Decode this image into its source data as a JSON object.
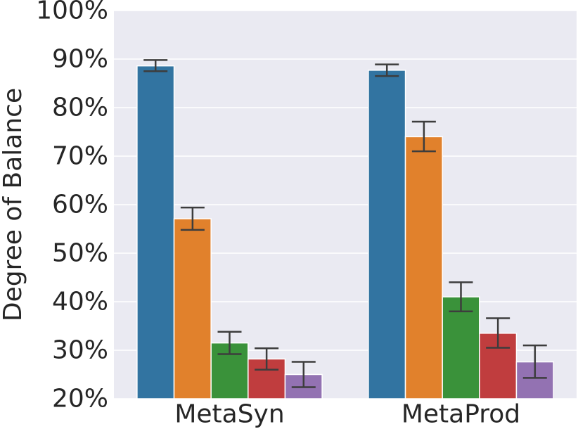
{
  "chart_data": {
    "type": "bar",
    "title": "",
    "xlabel": "",
    "ylabel": "Degree of Balance",
    "categories": [
      "MetaSyn",
      "MetaProd"
    ],
    "ylim": [
      20,
      100
    ],
    "y_ticks": [
      20,
      30,
      40,
      50,
      60,
      70,
      80,
      90,
      100
    ],
    "y_tick_labels": [
      "20%",
      "30%",
      "40%",
      "50%",
      "60%",
      "70%",
      "80%",
      "90%",
      "100%"
    ],
    "grid": true,
    "legend": "none",
    "series": [
      {
        "color": "#3274a1",
        "values": [
          88.6,
          87.7
        ],
        "err_low": [
          87.5,
          86.5
        ],
        "err_high": [
          89.8,
          88.9
        ]
      },
      {
        "color": "#e1812c",
        "values": [
          57.1,
          74.0
        ],
        "err_low": [
          54.8,
          71.0
        ],
        "err_high": [
          59.4,
          77.1
        ]
      },
      {
        "color": "#3a923a",
        "values": [
          31.5,
          41.0
        ],
        "err_low": [
          29.2,
          38.0
        ],
        "err_high": [
          33.8,
          44.0
        ]
      },
      {
        "color": "#c03d3e",
        "values": [
          28.2,
          33.5
        ],
        "err_low": [
          26.0,
          30.5
        ],
        "err_high": [
          30.4,
          36.6
        ]
      },
      {
        "color": "#9372b2",
        "values": [
          25.0,
          27.6
        ],
        "err_low": [
          22.4,
          24.3
        ],
        "err_high": [
          27.6,
          31.0
        ]
      }
    ]
  }
}
